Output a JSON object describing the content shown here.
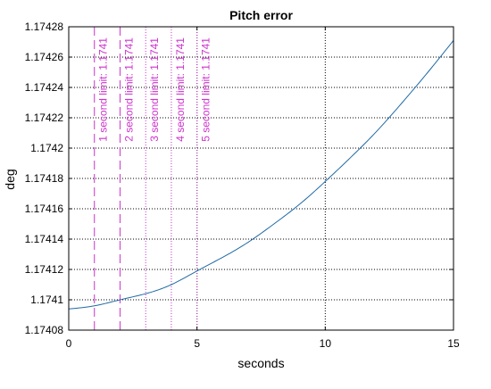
{
  "chart_data": {
    "type": "line",
    "title": "Pitch error",
    "xlabel": "seconds",
    "ylabel": "deg",
    "xlim": [
      0,
      15
    ],
    "ylim": [
      1.17408,
      1.17428
    ],
    "x_ticks": [
      0,
      5,
      10,
      15
    ],
    "x_tick_labels": [
      "0",
      "5",
      "10",
      "15"
    ],
    "y_ticks": [
      1.17408,
      1.1741,
      1.17412,
      1.17414,
      1.17416,
      1.17418,
      1.1742,
      1.17422,
      1.17424,
      1.17426,
      1.17428
    ],
    "y_tick_labels": [
      "1.17408",
      "1.1741",
      "1.17412",
      "1.17414",
      "1.17416",
      "1.17418",
      "1.1742",
      "1.17422",
      "1.17424",
      "1.17426",
      "1.17428"
    ],
    "grid": true,
    "series": [
      {
        "color": "#1f6aa5",
        "x": [
          0,
          1,
          2,
          3,
          4,
          5,
          6,
          7,
          8,
          9,
          10,
          11,
          12,
          13,
          14,
          15
        ],
        "y": [
          1.174094,
          1.174096,
          1.1741,
          1.174104,
          1.17411,
          1.174119,
          1.174128,
          1.174138,
          1.17415,
          1.174163,
          1.174178,
          1.174194,
          1.174211,
          1.17423,
          1.17425,
          1.174271
        ]
      }
    ],
    "annotations": [
      {
        "x": 1,
        "label": "1 second limit: 1.1741",
        "style": "longdash"
      },
      {
        "x": 2,
        "label": "2 second limit: 1.1741",
        "style": "longdash"
      },
      {
        "x": 3,
        "label": "3 second limit: 1.1741",
        "style": "dot"
      },
      {
        "x": 4,
        "label": "4 second limit: 1.1741",
        "style": "dot"
      },
      {
        "x": 5,
        "label": "5 second limit: 1.1741",
        "style": "dot"
      }
    ],
    "annotation_color": "#cc33cc"
  }
}
